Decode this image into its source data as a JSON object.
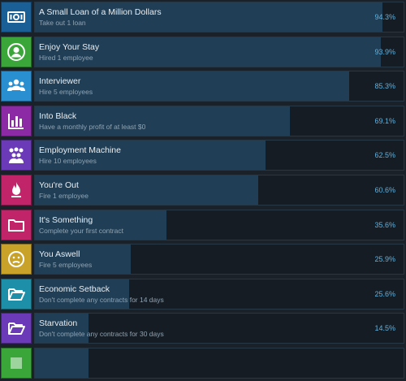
{
  "achievements": [
    {
      "title": "A Small Loan of a Million Dollars",
      "desc": "Take out 1 loan",
      "pct": "94.3%",
      "progress": 0.943,
      "icon": "money-icon",
      "color": "#1a5f96"
    },
    {
      "title": "Enjoy Your Stay",
      "desc": "Hired 1 employee",
      "pct": "93.9%",
      "progress": 0.939,
      "icon": "person-icon",
      "color": "#3aa63a"
    },
    {
      "title": "Interviewer",
      "desc": "Hire 5 employees",
      "pct": "85.3%",
      "progress": 0.853,
      "icon": "group-icon",
      "color": "#2a8fd0"
    },
    {
      "title": "Into Black",
      "desc": "Have a monthly profit of at least $0",
      "pct": "69.1%",
      "progress": 0.691,
      "icon": "bar-chart-icon",
      "color": "#8c2aa6"
    },
    {
      "title": "Employment Machine",
      "desc": "Hire 10 employees",
      "pct": "62.5%",
      "progress": 0.625,
      "icon": "crowd-icon",
      "color": "#6b3ab8"
    },
    {
      "title": "You're Out",
      "desc": "Fire 1 employee",
      "pct": "60.6%",
      "progress": 0.606,
      "icon": "fire-icon",
      "color": "#c2246a"
    },
    {
      "title": "It's Something",
      "desc": "Complete your first contract",
      "pct": "35.6%",
      "progress": 0.356,
      "icon": "folder-icon",
      "color": "#c2246a"
    },
    {
      "title": "You Aswell",
      "desc": "Fire 5 employees",
      "pct": "25.9%",
      "progress": 0.259,
      "icon": "sad-face-icon",
      "color": "#c9a22a"
    },
    {
      "title": "Economic Setback",
      "desc": "Don't complete any contracts for 14 days",
      "pct": "25.6%",
      "progress": 0.256,
      "icon": "open-folder-icon",
      "color": "#1e8fa8"
    },
    {
      "title": "Starvation",
      "desc": "Don't complete any contracts for 30 days",
      "pct": "14.5%",
      "progress": 0.145,
      "icon": "open-folder-icon",
      "color": "#6b3ab8"
    },
    {
      "title": "",
      "desc": "",
      "pct": "",
      "progress": 0.145,
      "icon": "unknown-icon",
      "color": "#3aa63a"
    }
  ]
}
